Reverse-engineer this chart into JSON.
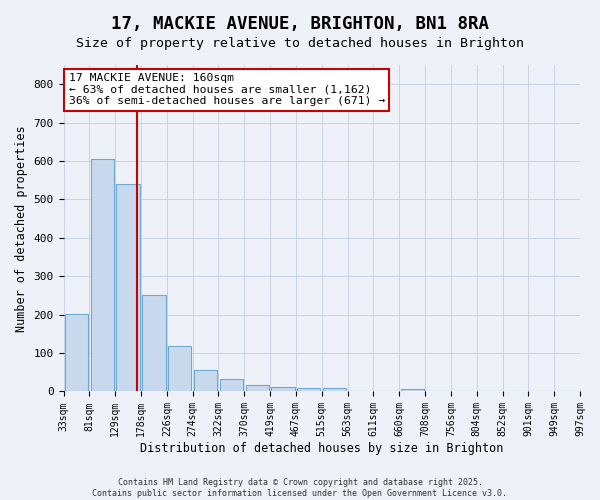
{
  "title": "17, MACKIE AVENUE, BRIGHTON, BN1 8RA",
  "subtitle": "Size of property relative to detached houses in Brighton",
  "xlabel": "Distribution of detached houses by size in Brighton",
  "ylabel": "Number of detached properties",
  "bar_labels": [
    "33sqm",
    "81sqm",
    "129sqm",
    "178sqm",
    "226sqm",
    "274sqm",
    "322sqm",
    "370sqm",
    "419sqm",
    "467sqm",
    "515sqm",
    "563sqm",
    "611sqm",
    "660sqm",
    "708sqm",
    "756sqm",
    "804sqm",
    "852sqm",
    "901sqm",
    "949sqm"
  ],
  "bar_values": [
    203,
    605,
    540,
    250,
    119,
    57,
    32,
    17,
    11,
    8,
    8,
    0,
    0,
    7,
    0,
    0,
    0,
    0,
    0,
    0
  ],
  "bar_color": "#c9d9ed",
  "bar_edge_color": "#6fa8d0",
  "grid_color": "#c8d4e8",
  "background_color": "#eef2f8",
  "vline_x": 2.333,
  "vline_color": "#cc0000",
  "annotation_text": "17 MACKIE AVENUE: 160sqm\n← 63% of detached houses are smaller (1,162)\n36% of semi-detached houses are larger (671) →",
  "annotation_box_color": "#ffffff",
  "annotation_box_edge": "#cc0000",
  "annotation_fontsize": 8.2,
  "ylim": [
    0,
    850
  ],
  "yticks": [
    0,
    100,
    200,
    300,
    400,
    500,
    600,
    700,
    800
  ],
  "title_fontsize": 12.5,
  "subtitle_fontsize": 9.5,
  "footer_line1": "Contains HM Land Registry data © Crown copyright and database right 2025.",
  "footer_line2": "Contains public sector information licensed under the Open Government Licence v3.0."
}
